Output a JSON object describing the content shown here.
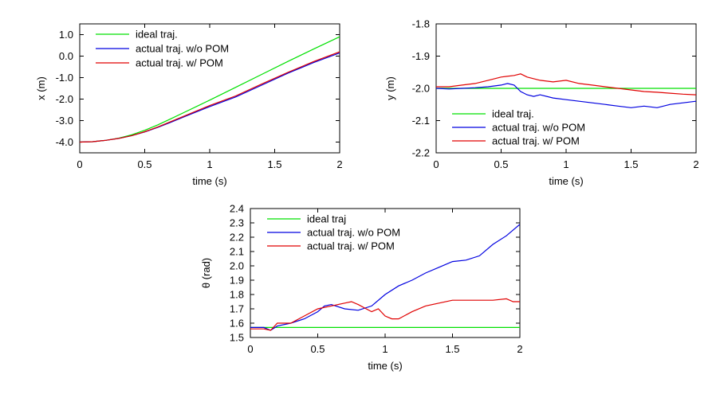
{
  "chart_data": [
    {
      "type": "line",
      "xlabel": "time (s)",
      "ylabel": "x (m)",
      "xlim": [
        0,
        2
      ],
      "ylim": [
        -4.5,
        1.5
      ],
      "xticks": [
        0,
        0.5,
        1,
        1.5,
        2
      ],
      "xtick_labels": [
        "0",
        "0.5",
        "1",
        "1.5",
        "2"
      ],
      "yticks": [
        -4,
        -3,
        -2,
        -1,
        0,
        1
      ],
      "ytick_labels": [
        "-4.0",
        "-3.0",
        "-2.0",
        "-1.0",
        "0.0",
        "1.0"
      ],
      "legend": "top-left",
      "grid": false,
      "series": [
        {
          "name": "ideal traj.",
          "color": "#00e000",
          "x": [
            0,
            0.1,
            0.2,
            0.3,
            0.4,
            0.5,
            0.6,
            0.7,
            0.8,
            1.0,
            1.2,
            1.4,
            1.6,
            1.8,
            2.0
          ],
          "y": [
            -4.0,
            -3.98,
            -3.92,
            -3.82,
            -3.66,
            -3.45,
            -3.2,
            -2.92,
            -2.63,
            -2.05,
            -1.45,
            -0.85,
            -0.25,
            0.33,
            0.9
          ]
        },
        {
          "name": "actual traj. w/o POM",
          "color": "#0000e0",
          "x": [
            0,
            0.1,
            0.2,
            0.3,
            0.4,
            0.5,
            0.6,
            0.7,
            0.8,
            1.0,
            1.2,
            1.4,
            1.6,
            1.8,
            2.0
          ],
          "y": [
            -4.0,
            -3.98,
            -3.92,
            -3.83,
            -3.7,
            -3.53,
            -3.32,
            -3.08,
            -2.83,
            -2.35,
            -1.9,
            -1.35,
            -0.8,
            -0.3,
            0.15
          ]
        },
        {
          "name": "actual traj. w/ POM",
          "color": "#e00000",
          "x": [
            0,
            0.1,
            0.2,
            0.3,
            0.4,
            0.5,
            0.6,
            0.7,
            0.8,
            1.0,
            1.2,
            1.4,
            1.6,
            1.8,
            2.0
          ],
          "y": [
            -4.0,
            -3.98,
            -3.92,
            -3.83,
            -3.7,
            -3.52,
            -3.3,
            -3.05,
            -2.8,
            -2.3,
            -1.85,
            -1.3,
            -0.76,
            -0.25,
            0.2
          ]
        }
      ]
    },
    {
      "type": "line",
      "xlabel": "time (s)",
      "ylabel": "y (m)",
      "xlim": [
        0,
        2
      ],
      "ylim": [
        -2.2,
        -1.8
      ],
      "xticks": [
        0,
        0.5,
        1,
        1.5,
        2
      ],
      "xtick_labels": [
        "0",
        "0.5",
        "1",
        "1.5",
        "2"
      ],
      "yticks": [
        -2.2,
        -2.1,
        -2.0,
        -1.9,
        -1.8
      ],
      "ytick_labels": [
        "-2.2",
        "-2.1",
        "-2.0",
        "-1.9",
        "-1.8"
      ],
      "legend": "bottom-left",
      "grid": false,
      "series": [
        {
          "name": "ideal traj.",
          "color": "#00e000",
          "x": [
            0,
            2
          ],
          "y": [
            -2.0,
            -2.0
          ]
        },
        {
          "name": "actual traj. w/o POM",
          "color": "#0000e0",
          "x": [
            0,
            0.1,
            0.2,
            0.3,
            0.4,
            0.5,
            0.55,
            0.6,
            0.65,
            0.7,
            0.75,
            0.8,
            0.9,
            1.0,
            1.1,
            1.2,
            1.3,
            1.4,
            1.5,
            1.6,
            1.7,
            1.8,
            1.9,
            2.0
          ],
          "y": [
            -2.0,
            -2.002,
            -2.0,
            -1.998,
            -1.995,
            -1.99,
            -1.985,
            -1.99,
            -2.01,
            -2.02,
            -2.025,
            -2.02,
            -2.03,
            -2.035,
            -2.04,
            -2.045,
            -2.05,
            -2.055,
            -2.06,
            -2.055,
            -2.06,
            -2.05,
            -2.045,
            -2.04
          ]
        },
        {
          "name": "actual traj. w/ POM",
          "color": "#e00000",
          "x": [
            0,
            0.1,
            0.2,
            0.3,
            0.4,
            0.5,
            0.6,
            0.65,
            0.7,
            0.8,
            0.9,
            1.0,
            1.1,
            1.2,
            1.3,
            1.4,
            1.5,
            1.6,
            1.7,
            1.8,
            1.9,
            2.0
          ],
          "y": [
            -1.995,
            -1.995,
            -1.99,
            -1.985,
            -1.975,
            -1.965,
            -1.96,
            -1.955,
            -1.965,
            -1.975,
            -1.98,
            -1.975,
            -1.985,
            -1.99,
            -1.995,
            -2.0,
            -2.005,
            -2.01,
            -2.012,
            -2.015,
            -2.018,
            -2.02
          ]
        }
      ]
    },
    {
      "type": "line",
      "xlabel": "time (s)",
      "ylabel": "θ (rad)",
      "xlim": [
        0,
        2
      ],
      "ylim": [
        1.5,
        2.4
      ],
      "xticks": [
        0,
        0.5,
        1,
        1.5,
        2
      ],
      "xtick_labels": [
        "0",
        "0.5",
        "1",
        "1.5",
        "2"
      ],
      "yticks": [
        1.5,
        1.6,
        1.7,
        1.8,
        1.9,
        2.0,
        2.1,
        2.2,
        2.3,
        2.4
      ],
      "ytick_labels": [
        "1.5",
        "1.6",
        "1.7",
        "1.8",
        "1.9",
        "2.0",
        "2.1",
        "2.2",
        "2.3",
        "2.4"
      ],
      "legend": "top-left",
      "grid": false,
      "series": [
        {
          "name": "ideal traj",
          "color": "#00e000",
          "x": [
            0,
            2
          ],
          "y": [
            1.57,
            1.57
          ]
        },
        {
          "name": "actual traj. w/o POM",
          "color": "#0000e0",
          "x": [
            0,
            0.1,
            0.15,
            0.2,
            0.3,
            0.4,
            0.5,
            0.55,
            0.6,
            0.7,
            0.8,
            0.9,
            1.0,
            1.1,
            1.2,
            1.3,
            1.4,
            1.5,
            1.6,
            1.7,
            1.8,
            1.9,
            2.0
          ],
          "y": [
            1.57,
            1.57,
            1.55,
            1.58,
            1.6,
            1.63,
            1.68,
            1.72,
            1.73,
            1.7,
            1.69,
            1.72,
            1.8,
            1.86,
            1.9,
            1.95,
            1.99,
            2.03,
            2.04,
            2.07,
            2.15,
            2.21,
            2.29
          ]
        },
        {
          "name": "actual traj. w/ POM",
          "color": "#e00000",
          "x": [
            0,
            0.1,
            0.15,
            0.2,
            0.25,
            0.3,
            0.4,
            0.5,
            0.6,
            0.7,
            0.75,
            0.8,
            0.9,
            0.95,
            1.0,
            1.05,
            1.1,
            1.2,
            1.3,
            1.4,
            1.5,
            1.6,
            1.7,
            1.8,
            1.9,
            1.95,
            2.0
          ],
          "y": [
            1.56,
            1.56,
            1.55,
            1.6,
            1.6,
            1.6,
            1.65,
            1.7,
            1.72,
            1.74,
            1.75,
            1.73,
            1.68,
            1.7,
            1.65,
            1.63,
            1.63,
            1.68,
            1.72,
            1.74,
            1.76,
            1.76,
            1.76,
            1.76,
            1.77,
            1.75,
            1.75
          ]
        }
      ]
    }
  ]
}
